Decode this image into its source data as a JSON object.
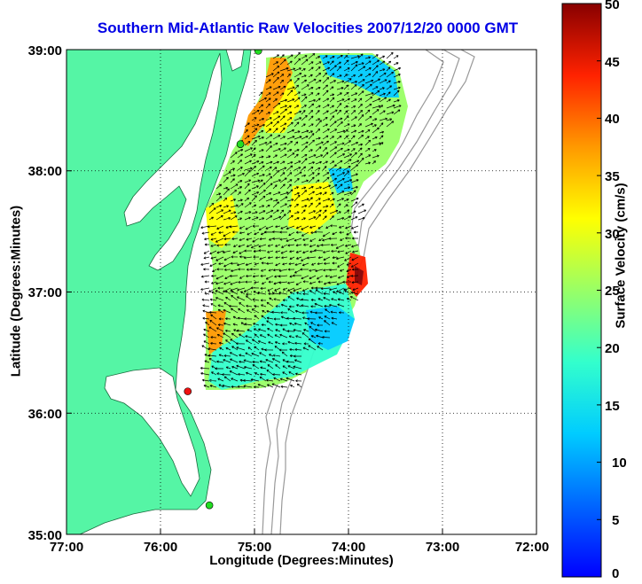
{
  "title": "Southern Mid-Atlantic Raw Velocities 2007/12/20 0000 GMT",
  "axes": {
    "xlabel": "Longitude (Degrees:Minutes)",
    "ylabel": "Latitude (Degrees:Minutes)",
    "xticks": [
      "77:00",
      "76:00",
      "75:00",
      "74:00",
      "73:00",
      "72:00"
    ],
    "yticks": [
      "39:00",
      "38:00",
      "37:00",
      "36:00",
      "35:00"
    ],
    "xlim": [
      -77,
      -72
    ],
    "ylim": [
      35,
      39
    ],
    "grid": "dotted"
  },
  "colorbar": {
    "label": "Surface Velocity (cm/s)",
    "ticks": [
      "50",
      "45",
      "40",
      "35",
      "30",
      "25",
      "20",
      "15",
      "10",
      "5",
      "0"
    ],
    "range": [
      0,
      50
    ],
    "colormap": "jet"
  },
  "colors": {
    "land": "#55f5a5",
    "title": "#0000e6",
    "bathymetry": "#999999",
    "station_green": "#22dd22",
    "station_red": "#ee1111"
  },
  "stations": [
    {
      "lon": -74.96,
      "lat": 38.99,
      "color": "green"
    },
    {
      "lon": -75.15,
      "lat": 38.22,
      "color": "green"
    },
    {
      "lon": -75.71,
      "lat": 36.18,
      "color": "red"
    },
    {
      "lon": -75.48,
      "lat": 35.24,
      "color": "green"
    }
  ]
}
